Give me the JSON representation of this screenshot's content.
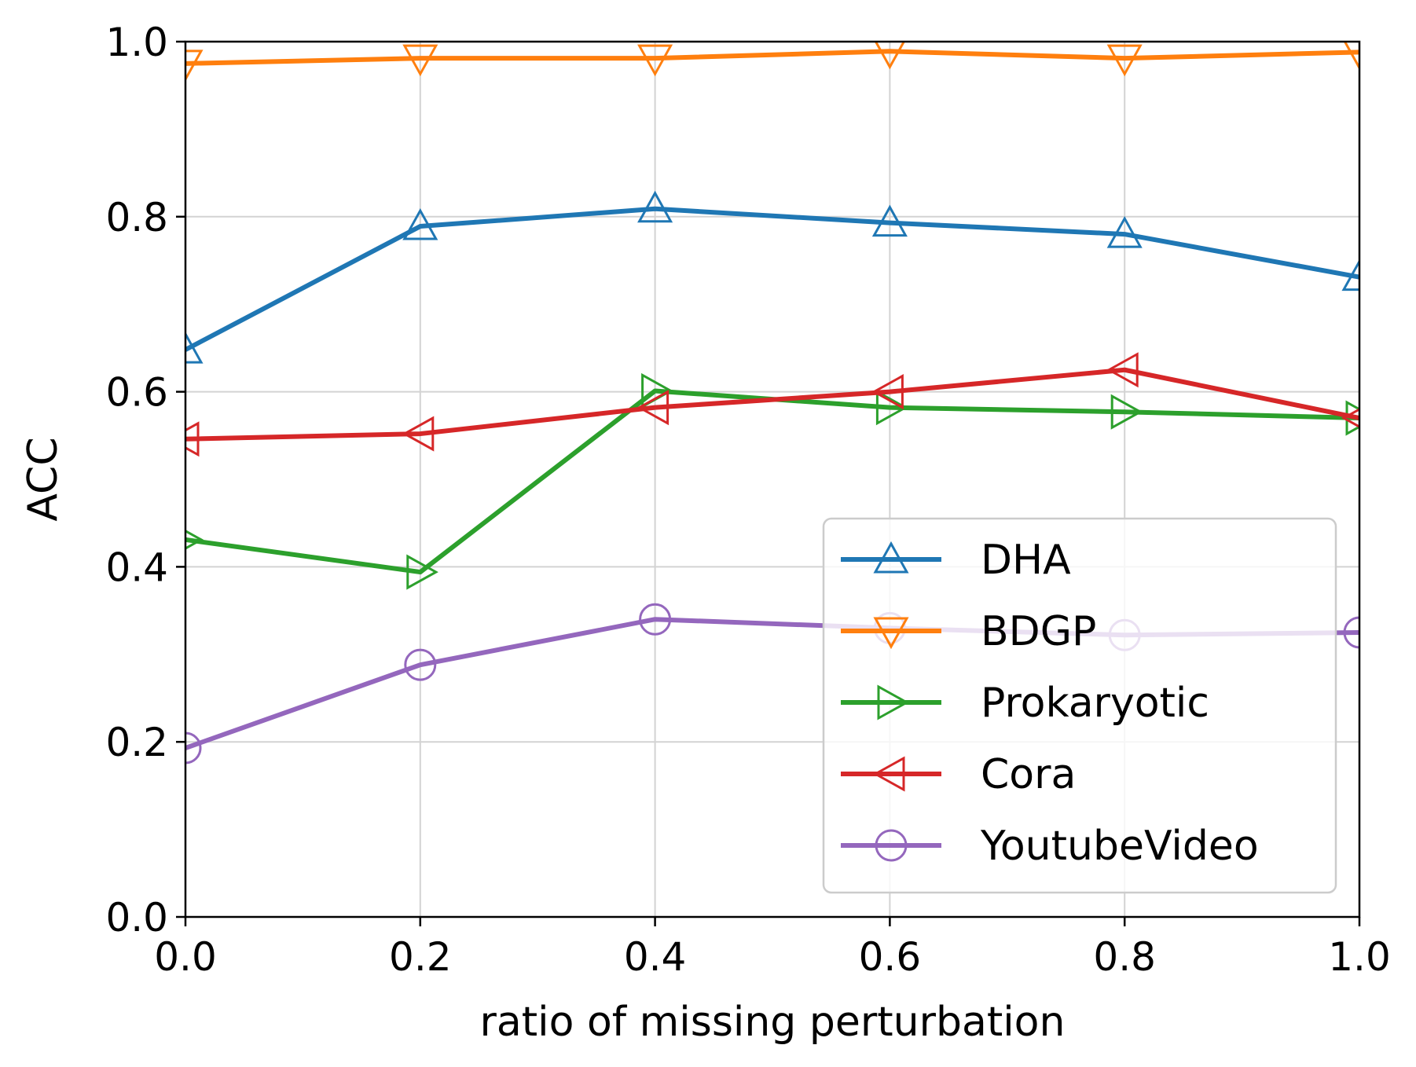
{
  "chart_data": {
    "type": "line",
    "title": "",
    "xlabel": "ratio of missing perturbation",
    "ylabel": "ACC",
    "xlim": [
      0.0,
      1.0
    ],
    "ylim": [
      0.0,
      1.0
    ],
    "xticks": [
      "0.0",
      "0.2",
      "0.4",
      "0.6",
      "0.8",
      "1.0"
    ],
    "yticks": [
      "0.0",
      "0.2",
      "0.4",
      "0.6",
      "0.8",
      "1.0"
    ],
    "grid": true,
    "legend_position": "lower-right",
    "x": [
      0.0,
      0.2,
      0.4,
      0.6,
      0.8,
      1.0
    ],
    "series": [
      {
        "name": "DHA",
        "marker": "triangle-up",
        "color": "#1f77b4",
        "values": [
          0.648,
          0.789,
          0.809,
          0.793,
          0.78,
          0.731
        ]
      },
      {
        "name": "BDGP",
        "marker": "triangle-down",
        "color": "#ff7f0e",
        "values": [
          0.975,
          0.981,
          0.981,
          0.989,
          0.981,
          0.988
        ]
      },
      {
        "name": "Prokaryotic",
        "marker": "triangle-right",
        "color": "#2ca02c",
        "values": [
          0.431,
          0.394,
          0.601,
          0.582,
          0.577,
          0.57
        ]
      },
      {
        "name": "Cora",
        "marker": "triangle-left",
        "color": "#d62728",
        "values": [
          0.546,
          0.552,
          0.582,
          0.6,
          0.625,
          0.57
        ]
      },
      {
        "name": "YoutubeVideo",
        "marker": "circle",
        "color": "#9467bd",
        "values": [
          0.193,
          0.288,
          0.34,
          0.33,
          0.322,
          0.325
        ]
      }
    ]
  }
}
